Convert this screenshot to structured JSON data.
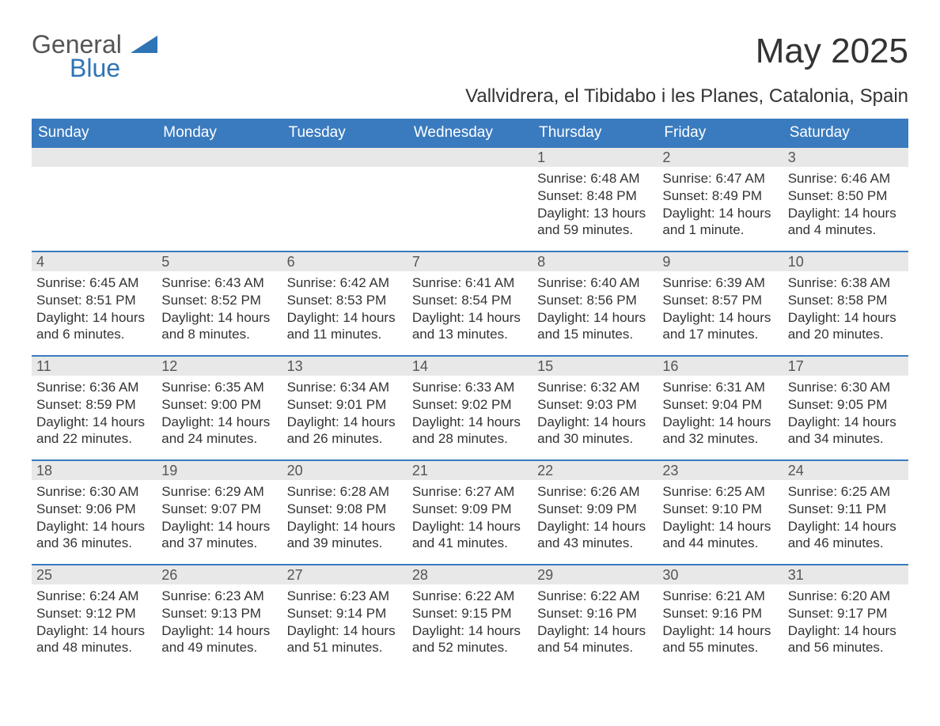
{
  "colors": {
    "header_bg": "#3a7bbf",
    "header_text": "#ffffff",
    "row_border": "#3a7bbf",
    "daynum_bg": "#e8e8e8",
    "daynum_text": "#555555",
    "body_text": "#333333",
    "logo_gray": "#555555",
    "logo_blue": "#2f74b5",
    "page_bg": "#ffffff"
  },
  "typography": {
    "month_title_fontsize": 44,
    "location_fontsize": 24,
    "weekday_fontsize": 19,
    "daynum_fontsize": 18,
    "body_fontsize": 17,
    "logo_fontsize": 32
  },
  "logo": {
    "general": "General",
    "blue": "Blue"
  },
  "title": "May 2025",
  "location": "Vallvidrera, el Tibidabo i les Planes, Catalonia, Spain",
  "weekdays": [
    "Sunday",
    "Monday",
    "Tuesday",
    "Wednesday",
    "Thursday",
    "Friday",
    "Saturday"
  ],
  "calendar": {
    "type": "table",
    "columns": 7,
    "weeks": [
      [
        null,
        null,
        null,
        null,
        {
          "n": "1",
          "sunrise": "Sunrise: 6:48 AM",
          "sunset": "Sunset: 8:48 PM",
          "daylight": "Daylight: 13 hours and 59 minutes."
        },
        {
          "n": "2",
          "sunrise": "Sunrise: 6:47 AM",
          "sunset": "Sunset: 8:49 PM",
          "daylight": "Daylight: 14 hours and 1 minute."
        },
        {
          "n": "3",
          "sunrise": "Sunrise: 6:46 AM",
          "sunset": "Sunset: 8:50 PM",
          "daylight": "Daylight: 14 hours and 4 minutes."
        }
      ],
      [
        {
          "n": "4",
          "sunrise": "Sunrise: 6:45 AM",
          "sunset": "Sunset: 8:51 PM",
          "daylight": "Daylight: 14 hours and 6 minutes."
        },
        {
          "n": "5",
          "sunrise": "Sunrise: 6:43 AM",
          "sunset": "Sunset: 8:52 PM",
          "daylight": "Daylight: 14 hours and 8 minutes."
        },
        {
          "n": "6",
          "sunrise": "Sunrise: 6:42 AM",
          "sunset": "Sunset: 8:53 PM",
          "daylight": "Daylight: 14 hours and 11 minutes."
        },
        {
          "n": "7",
          "sunrise": "Sunrise: 6:41 AM",
          "sunset": "Sunset: 8:54 PM",
          "daylight": "Daylight: 14 hours and 13 minutes."
        },
        {
          "n": "8",
          "sunrise": "Sunrise: 6:40 AM",
          "sunset": "Sunset: 8:56 PM",
          "daylight": "Daylight: 14 hours and 15 minutes."
        },
        {
          "n": "9",
          "sunrise": "Sunrise: 6:39 AM",
          "sunset": "Sunset: 8:57 PM",
          "daylight": "Daylight: 14 hours and 17 minutes."
        },
        {
          "n": "10",
          "sunrise": "Sunrise: 6:38 AM",
          "sunset": "Sunset: 8:58 PM",
          "daylight": "Daylight: 14 hours and 20 minutes."
        }
      ],
      [
        {
          "n": "11",
          "sunrise": "Sunrise: 6:36 AM",
          "sunset": "Sunset: 8:59 PM",
          "daylight": "Daylight: 14 hours and 22 minutes."
        },
        {
          "n": "12",
          "sunrise": "Sunrise: 6:35 AM",
          "sunset": "Sunset: 9:00 PM",
          "daylight": "Daylight: 14 hours and 24 minutes."
        },
        {
          "n": "13",
          "sunrise": "Sunrise: 6:34 AM",
          "sunset": "Sunset: 9:01 PM",
          "daylight": "Daylight: 14 hours and 26 minutes."
        },
        {
          "n": "14",
          "sunrise": "Sunrise: 6:33 AM",
          "sunset": "Sunset: 9:02 PM",
          "daylight": "Daylight: 14 hours and 28 minutes."
        },
        {
          "n": "15",
          "sunrise": "Sunrise: 6:32 AM",
          "sunset": "Sunset: 9:03 PM",
          "daylight": "Daylight: 14 hours and 30 minutes."
        },
        {
          "n": "16",
          "sunrise": "Sunrise: 6:31 AM",
          "sunset": "Sunset: 9:04 PM",
          "daylight": "Daylight: 14 hours and 32 minutes."
        },
        {
          "n": "17",
          "sunrise": "Sunrise: 6:30 AM",
          "sunset": "Sunset: 9:05 PM",
          "daylight": "Daylight: 14 hours and 34 minutes."
        }
      ],
      [
        {
          "n": "18",
          "sunrise": "Sunrise: 6:30 AM",
          "sunset": "Sunset: 9:06 PM",
          "daylight": "Daylight: 14 hours and 36 minutes."
        },
        {
          "n": "19",
          "sunrise": "Sunrise: 6:29 AM",
          "sunset": "Sunset: 9:07 PM",
          "daylight": "Daylight: 14 hours and 37 minutes."
        },
        {
          "n": "20",
          "sunrise": "Sunrise: 6:28 AM",
          "sunset": "Sunset: 9:08 PM",
          "daylight": "Daylight: 14 hours and 39 minutes."
        },
        {
          "n": "21",
          "sunrise": "Sunrise: 6:27 AM",
          "sunset": "Sunset: 9:09 PM",
          "daylight": "Daylight: 14 hours and 41 minutes."
        },
        {
          "n": "22",
          "sunrise": "Sunrise: 6:26 AM",
          "sunset": "Sunset: 9:09 PM",
          "daylight": "Daylight: 14 hours and 43 minutes."
        },
        {
          "n": "23",
          "sunrise": "Sunrise: 6:25 AM",
          "sunset": "Sunset: 9:10 PM",
          "daylight": "Daylight: 14 hours and 44 minutes."
        },
        {
          "n": "24",
          "sunrise": "Sunrise: 6:25 AM",
          "sunset": "Sunset: 9:11 PM",
          "daylight": "Daylight: 14 hours and 46 minutes."
        }
      ],
      [
        {
          "n": "25",
          "sunrise": "Sunrise: 6:24 AM",
          "sunset": "Sunset: 9:12 PM",
          "daylight": "Daylight: 14 hours and 48 minutes."
        },
        {
          "n": "26",
          "sunrise": "Sunrise: 6:23 AM",
          "sunset": "Sunset: 9:13 PM",
          "daylight": "Daylight: 14 hours and 49 minutes."
        },
        {
          "n": "27",
          "sunrise": "Sunrise: 6:23 AM",
          "sunset": "Sunset: 9:14 PM",
          "daylight": "Daylight: 14 hours and 51 minutes."
        },
        {
          "n": "28",
          "sunrise": "Sunrise: 6:22 AM",
          "sunset": "Sunset: 9:15 PM",
          "daylight": "Daylight: 14 hours and 52 minutes."
        },
        {
          "n": "29",
          "sunrise": "Sunrise: 6:22 AM",
          "sunset": "Sunset: 9:16 PM",
          "daylight": "Daylight: 14 hours and 54 minutes."
        },
        {
          "n": "30",
          "sunrise": "Sunrise: 6:21 AM",
          "sunset": "Sunset: 9:16 PM",
          "daylight": "Daylight: 14 hours and 55 minutes."
        },
        {
          "n": "31",
          "sunrise": "Sunrise: 6:20 AM",
          "sunset": "Sunset: 9:17 PM",
          "daylight": "Daylight: 14 hours and 56 minutes."
        }
      ]
    ]
  }
}
